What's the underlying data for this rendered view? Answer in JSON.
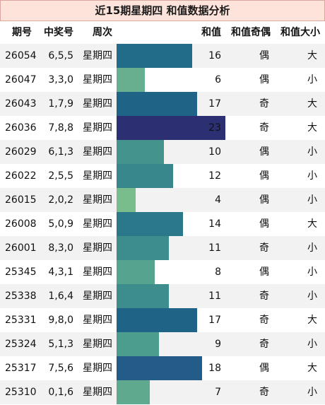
{
  "title": "近15期星期四 和值数据分析",
  "columns": {
    "issue": "期号",
    "numbers": "中奖号",
    "weekday": "周次",
    "sum": "和值",
    "parity": "和值奇偶",
    "size": "和值大小"
  },
  "bar_colors": {
    "4": "#7abd8c",
    "6": "#67af8e",
    "7": "#5faa8e",
    "8": "#56a48f",
    "9": "#4d9d8e",
    "10": "#44948d",
    "11": "#3d8d8c",
    "12": "#37878c",
    "14": "#2a788a",
    "16": "#226b89",
    "17": "#1f6387",
    "18": "#235c88",
    "23": "#2c2f72"
  },
  "chart_data": {
    "type": "table",
    "max_sum": 23,
    "rows": [
      {
        "issue": "26054",
        "numbers": "6,5,5",
        "weekday": "星期四",
        "sum": 16,
        "parity": "偶",
        "size": "大"
      },
      {
        "issue": "26047",
        "numbers": "3,3,0",
        "weekday": "星期四",
        "sum": 6,
        "parity": "偶",
        "size": "小"
      },
      {
        "issue": "26043",
        "numbers": "1,7,9",
        "weekday": "星期四",
        "sum": 17,
        "parity": "奇",
        "size": "大"
      },
      {
        "issue": "26036",
        "numbers": "7,8,8",
        "weekday": "星期四",
        "sum": 23,
        "parity": "奇",
        "size": "大"
      },
      {
        "issue": "26029",
        "numbers": "6,1,3",
        "weekday": "星期四",
        "sum": 10,
        "parity": "偶",
        "size": "小"
      },
      {
        "issue": "26022",
        "numbers": "2,5,5",
        "weekday": "星期四",
        "sum": 12,
        "parity": "偶",
        "size": "小"
      },
      {
        "issue": "26015",
        "numbers": "2,0,2",
        "weekday": "星期四",
        "sum": 4,
        "parity": "偶",
        "size": "小"
      },
      {
        "issue": "26008",
        "numbers": "5,0,9",
        "weekday": "星期四",
        "sum": 14,
        "parity": "偶",
        "size": "大"
      },
      {
        "issue": "26001",
        "numbers": "8,3,0",
        "weekday": "星期四",
        "sum": 11,
        "parity": "奇",
        "size": "小"
      },
      {
        "issue": "25345",
        "numbers": "4,3,1",
        "weekday": "星期四",
        "sum": 8,
        "parity": "偶",
        "size": "小"
      },
      {
        "issue": "25338",
        "numbers": "1,6,4",
        "weekday": "星期四",
        "sum": 11,
        "parity": "奇",
        "size": "小"
      },
      {
        "issue": "25331",
        "numbers": "9,8,0",
        "weekday": "星期四",
        "sum": 17,
        "parity": "奇",
        "size": "大"
      },
      {
        "issue": "25324",
        "numbers": "5,1,3",
        "weekday": "星期四",
        "sum": 9,
        "parity": "奇",
        "size": "小"
      },
      {
        "issue": "25317",
        "numbers": "7,5,6",
        "weekday": "星期四",
        "sum": 18,
        "parity": "偶",
        "size": "大"
      },
      {
        "issue": "25310",
        "numbers": "0,1,6",
        "weekday": "星期四",
        "sum": 7,
        "parity": "奇",
        "size": "小"
      }
    ]
  }
}
